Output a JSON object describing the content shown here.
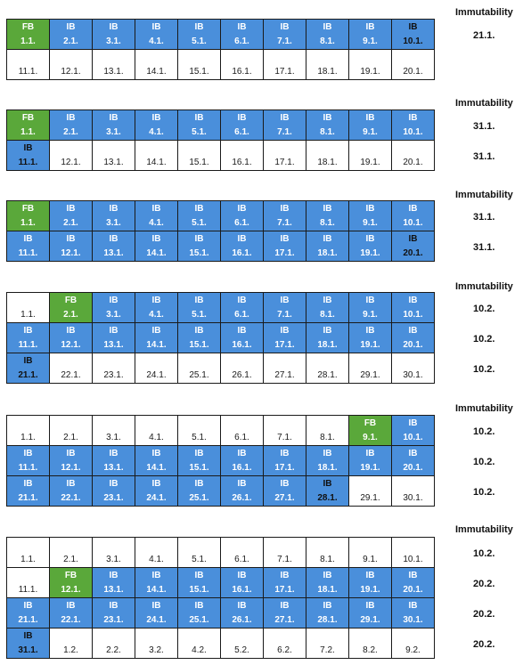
{
  "immutability_label": "Immutability",
  "colors": {
    "incremental_backup": "#4a8fdb",
    "full_backup": "#5aa83a",
    "empty": "#ffffff"
  },
  "blocks": [
    {
      "rows": [
        [
          [
            "FB",
            "1.1."
          ],
          [
            "IB",
            "2.1."
          ],
          [
            "IB",
            "3.1."
          ],
          [
            "IB",
            "4.1."
          ],
          [
            "IB",
            "5.1."
          ],
          [
            "IB",
            "6.1."
          ],
          [
            "IB",
            "7.1."
          ],
          [
            "IB",
            "8.1."
          ],
          [
            "IB",
            "9.1."
          ],
          [
            "IB",
            "10.1."
          ]
        ],
        [
          [
            "",
            "11.1."
          ],
          [
            "",
            "12.1."
          ],
          [
            "",
            "13.1."
          ],
          [
            "",
            "14.1."
          ],
          [
            "",
            "15.1."
          ],
          [
            "",
            "16.1."
          ],
          [
            "",
            "17.1."
          ],
          [
            "",
            "18.1."
          ],
          [
            "",
            "19.1."
          ],
          [
            "",
            "20.1."
          ]
        ]
      ],
      "immutability": [
        "21.1."
      ]
    },
    {
      "rows": [
        [
          [
            "FB",
            "1.1."
          ],
          [
            "IB",
            "2.1."
          ],
          [
            "IB",
            "3.1."
          ],
          [
            "IB",
            "4.1."
          ],
          [
            "IB",
            "5.1."
          ],
          [
            "IB",
            "6.1."
          ],
          [
            "IB",
            "7.1."
          ],
          [
            "IB",
            "8.1."
          ],
          [
            "IB",
            "9.1."
          ],
          [
            "IB",
            "10.1."
          ]
        ],
        [
          [
            "IB",
            "11.1."
          ],
          [
            "",
            "12.1."
          ],
          [
            "",
            "13.1."
          ],
          [
            "",
            "14.1."
          ],
          [
            "",
            "15.1."
          ],
          [
            "",
            "16.1."
          ],
          [
            "",
            "17.1."
          ],
          [
            "",
            "18.1."
          ],
          [
            "",
            "19.1."
          ],
          [
            "",
            "20.1."
          ]
        ]
      ],
      "immutability": [
        "31.1.",
        "31.1."
      ]
    },
    {
      "rows": [
        [
          [
            "FB",
            "1.1."
          ],
          [
            "IB",
            "2.1."
          ],
          [
            "IB",
            "3.1."
          ],
          [
            "IB",
            "4.1."
          ],
          [
            "IB",
            "5.1."
          ],
          [
            "IB",
            "6.1."
          ],
          [
            "IB",
            "7.1."
          ],
          [
            "IB",
            "8.1."
          ],
          [
            "IB",
            "9.1."
          ],
          [
            "IB",
            "10.1."
          ]
        ],
        [
          [
            "IB",
            "11.1."
          ],
          [
            "IB",
            "12.1."
          ],
          [
            "IB",
            "13.1."
          ],
          [
            "IB",
            "14.1."
          ],
          [
            "IB",
            "15.1."
          ],
          [
            "IB",
            "16.1."
          ],
          [
            "IB",
            "17.1."
          ],
          [
            "IB",
            "18.1."
          ],
          [
            "IB",
            "19.1."
          ],
          [
            "IB",
            "20.1."
          ]
        ]
      ],
      "immutability": [
        "31.1.",
        "31.1."
      ]
    },
    {
      "rows": [
        [
          [
            "",
            "1.1."
          ],
          [
            "FB",
            "2.1."
          ],
          [
            "IB",
            "3.1."
          ],
          [
            "IB",
            "4.1."
          ],
          [
            "IB",
            "5.1."
          ],
          [
            "IB",
            "6.1."
          ],
          [
            "IB",
            "7.1."
          ],
          [
            "IB",
            "8.1."
          ],
          [
            "IB",
            "9.1."
          ],
          [
            "IB",
            "10.1."
          ]
        ],
        [
          [
            "IB",
            "11.1."
          ],
          [
            "IB",
            "12.1."
          ],
          [
            "IB",
            "13.1."
          ],
          [
            "IB",
            "14.1."
          ],
          [
            "IB",
            "15.1."
          ],
          [
            "IB",
            "16.1."
          ],
          [
            "IB",
            "17.1."
          ],
          [
            "IB",
            "18.1."
          ],
          [
            "IB",
            "19.1."
          ],
          [
            "IB",
            "20.1."
          ]
        ],
        [
          [
            "IB",
            "21.1."
          ],
          [
            "",
            "22.1."
          ],
          [
            "",
            "23.1."
          ],
          [
            "",
            "24.1."
          ],
          [
            "",
            "25.1."
          ],
          [
            "",
            "26.1."
          ],
          [
            "",
            "27.1."
          ],
          [
            "",
            "28.1."
          ],
          [
            "",
            "29.1."
          ],
          [
            "",
            "30.1."
          ]
        ]
      ],
      "immutability": [
        "10.2.",
        "10.2.",
        "10.2."
      ]
    },
    {
      "rows": [
        [
          [
            "",
            "1.1."
          ],
          [
            "",
            "2.1."
          ],
          [
            "",
            "3.1."
          ],
          [
            "",
            "4.1."
          ],
          [
            "",
            "5.1."
          ],
          [
            "",
            "6.1."
          ],
          [
            "",
            "7.1."
          ],
          [
            "",
            "8.1."
          ],
          [
            "FB",
            "9.1."
          ],
          [
            "IB",
            "10.1."
          ]
        ],
        [
          [
            "IB",
            "11.1."
          ],
          [
            "IB",
            "12.1."
          ],
          [
            "IB",
            "13.1."
          ],
          [
            "IB",
            "14.1."
          ],
          [
            "IB",
            "15.1."
          ],
          [
            "IB",
            "16.1."
          ],
          [
            "IB",
            "17.1."
          ],
          [
            "IB",
            "18.1."
          ],
          [
            "IB",
            "19.1."
          ],
          [
            "IB",
            "20.1."
          ]
        ],
        [
          [
            "IB",
            "21.1."
          ],
          [
            "IB",
            "22.1."
          ],
          [
            "IB",
            "23.1."
          ],
          [
            "IB",
            "24.1."
          ],
          [
            "IB",
            "25.1."
          ],
          [
            "IB",
            "26.1."
          ],
          [
            "IB",
            "27.1."
          ],
          [
            "IB",
            "28.1."
          ],
          [
            "",
            "29.1."
          ],
          [
            "",
            "30.1."
          ]
        ]
      ],
      "immutability": [
        "10.2.",
        "10.2.",
        "10.2."
      ]
    },
    {
      "rows": [
        [
          [
            "",
            "1.1."
          ],
          [
            "",
            "2.1."
          ],
          [
            "",
            "3.1."
          ],
          [
            "",
            "4.1."
          ],
          [
            "",
            "5.1."
          ],
          [
            "",
            "6.1."
          ],
          [
            "",
            "7.1."
          ],
          [
            "",
            "8.1."
          ],
          [
            "",
            "9.1."
          ],
          [
            "",
            "10.1."
          ]
        ],
        [
          [
            "",
            "11.1."
          ],
          [
            "FB",
            "12.1."
          ],
          [
            "IB",
            "13.1."
          ],
          [
            "IB",
            "14.1."
          ],
          [
            "IB",
            "15.1."
          ],
          [
            "IB",
            "16.1."
          ],
          [
            "IB",
            "17.1."
          ],
          [
            "IB",
            "18.1."
          ],
          [
            "IB",
            "19.1."
          ],
          [
            "IB",
            "20.1."
          ]
        ],
        [
          [
            "IB",
            "21.1."
          ],
          [
            "IB",
            "22.1."
          ],
          [
            "IB",
            "23.1."
          ],
          [
            "IB",
            "24.1."
          ],
          [
            "IB",
            "25.1."
          ],
          [
            "IB",
            "26.1."
          ],
          [
            "IB",
            "27.1."
          ],
          [
            "IB",
            "28.1."
          ],
          [
            "IB",
            "29.1."
          ],
          [
            "IB",
            "30.1."
          ]
        ],
        [
          [
            "IB",
            "31.1."
          ],
          [
            "",
            "1.2."
          ],
          [
            "",
            "2.2."
          ],
          [
            "",
            "3.2."
          ],
          [
            "",
            "4.2."
          ],
          [
            "",
            "5.2."
          ],
          [
            "",
            "6.2."
          ],
          [
            "",
            "7.2."
          ],
          [
            "",
            "8.2."
          ],
          [
            "",
            "9.2."
          ]
        ]
      ],
      "immutability": [
        "10.2.",
        "20.2.",
        "20.2.",
        "20.2."
      ]
    }
  ]
}
